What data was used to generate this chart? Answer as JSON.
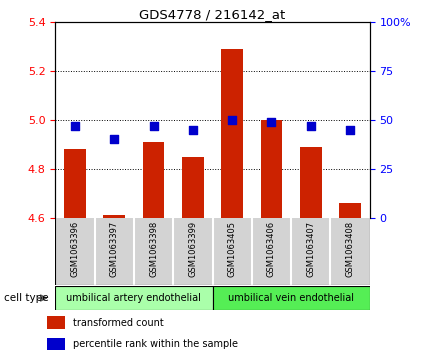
{
  "title": "GDS4778 / 216142_at",
  "samples": [
    "GSM1063396",
    "GSM1063397",
    "GSM1063398",
    "GSM1063399",
    "GSM1063405",
    "GSM1063406",
    "GSM1063407",
    "GSM1063408"
  ],
  "transformed_counts": [
    4.88,
    4.61,
    4.91,
    4.85,
    5.29,
    5.0,
    4.89,
    4.66
  ],
  "percentile_ranks": [
    47,
    40,
    47,
    45,
    50,
    49,
    47,
    45
  ],
  "ylim_left": [
    4.6,
    5.4
  ],
  "ylim_right": [
    0,
    100
  ],
  "yticks_left": [
    4.6,
    4.8,
    5.0,
    5.2,
    5.4
  ],
  "yticks_right": [
    0,
    25,
    50,
    75,
    100
  ],
  "ytick_labels_right": [
    "0",
    "25",
    "50",
    "75",
    "100%"
  ],
  "bar_color": "#cc2200",
  "dot_color": "#0000cc",
  "bar_bottom": 4.6,
  "cell_type_groups": [
    {
      "label": "umbilical artery endothelial",
      "indices": [
        0,
        1,
        2,
        3
      ],
      "color": "#aaffaa"
    },
    {
      "label": "umbilical vein endothelial",
      "indices": [
        4,
        5,
        6,
        7
      ],
      "color": "#55ee55"
    }
  ],
  "cell_type_label": "cell type",
  "legend_items": [
    {
      "label": "transformed count",
      "color": "#cc2200"
    },
    {
      "label": "percentile rank within the sample",
      "color": "#0000cc"
    }
  ],
  "bar_width": 0.55,
  "dot_size": 35,
  "gray_box_color": "#d3d3d3",
  "gray_box_edge_color": "#ffffff"
}
